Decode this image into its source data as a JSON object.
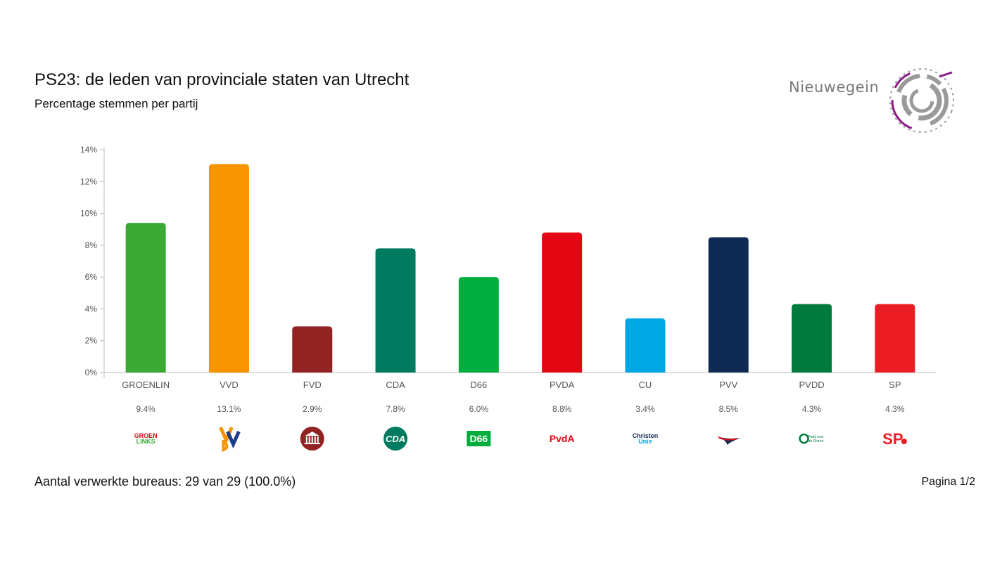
{
  "header": {
    "title": "PS23: de leden van provinciale staten van Utrecht",
    "subtitle": "Percentage stemmen per partij",
    "brand": "Nieuwegein"
  },
  "footer": {
    "bureaus": "Aantal verwerkte bureaus: 29 van 29 (100.0%)",
    "page": "Pagina 1/2"
  },
  "chart_data": {
    "type": "bar",
    "categories": [
      "GROENLIN",
      "VVD",
      "FVD",
      "CDA",
      "D66",
      "PVDA",
      "CU",
      "PVV",
      "PVDD",
      "SP"
    ],
    "values": [
      9.4,
      13.1,
      2.9,
      7.8,
      6.0,
      8.8,
      3.4,
      8.5,
      4.3,
      4.3
    ],
    "value_labels": [
      "9.4%",
      "13.1%",
      "2.9%",
      "7.8%",
      "6.0%",
      "8.8%",
      "3.4%",
      "8.5%",
      "4.3%",
      "4.3%"
    ],
    "colors": [
      "#3aaa35",
      "#f79400",
      "#922323",
      "#007b5f",
      "#00ad3e",
      "#e30613",
      "#00a7e7",
      "#0f2a52",
      "#007a3d",
      "#ec1c24"
    ],
    "yticks": [
      0,
      2,
      4,
      6,
      8,
      10,
      12,
      14
    ],
    "ytick_labels": [
      "0%",
      "2%",
      "4%",
      "6%",
      "8%",
      "10%",
      "12%",
      "14%"
    ],
    "ylim": [
      0,
      14
    ],
    "grid": false
  },
  "logos": [
    {
      "name": "groenlinks-logo",
      "text1": "GROEN",
      "text2": "LINKS"
    },
    {
      "name": "vvd-logo",
      "text1": "VVD"
    },
    {
      "name": "fvd-logo"
    },
    {
      "name": "cda-logo",
      "text1": "CDA"
    },
    {
      "name": "d66-logo",
      "text1": "D66"
    },
    {
      "name": "pvda-logo",
      "text1": "PvdA"
    },
    {
      "name": "cu-logo",
      "text1": "Christen",
      "text2": "Unie"
    },
    {
      "name": "pvv-logo"
    },
    {
      "name": "pvdd-logo",
      "text1": "Partij voor",
      "text2": "de Dieren"
    },
    {
      "name": "sp-logo",
      "text1": "SP"
    }
  ]
}
